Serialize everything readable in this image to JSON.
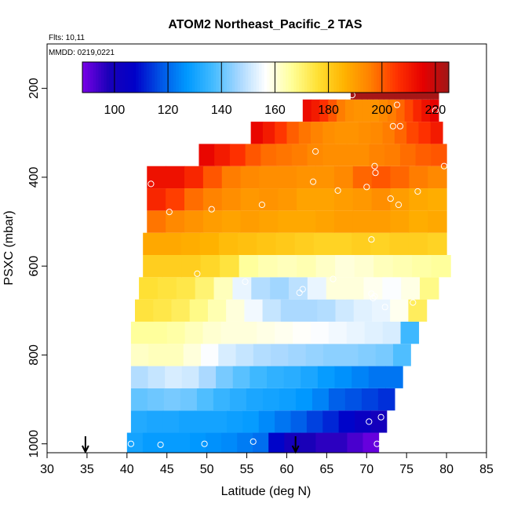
{
  "chart_data": {
    "type": "heatmap",
    "title": "ATOM2 Northeast_Pacific_2 TAS",
    "subtitle_flights": "Flts: 10,11",
    "subtitle_dates": "MMDD: 0219,0221",
    "xlabel": "Latitude (deg N)",
    "ylabel": "PSXC (mbar)",
    "xlim": [
      30,
      85
    ],
    "ylim": [
      1020,
      100
    ],
    "x_ticks": [
      30,
      35,
      40,
      45,
      50,
      55,
      60,
      65,
      70,
      75,
      80,
      85
    ],
    "y_ticks": [
      200,
      400,
      600,
      800,
      1000
    ],
    "colorbar": {
      "min": 88,
      "max": 225,
      "ticks": [
        100,
        120,
        140,
        160,
        180,
        200,
        220
      ],
      "colors": [
        "#7a00e6",
        "#1a00b8",
        "#0000c8",
        "#0055e6",
        "#0099ff",
        "#44bbff",
        "#a8d8ff",
        "#ffffff",
        "#ffff99",
        "#ffe033",
        "#ffb300",
        "#ff8000",
        "#ff3300",
        "#e60000",
        "#a01818"
      ]
    },
    "bands": [
      {
        "p": 1000,
        "lat": [
          40.0,
          71.5
        ],
        "v": [
          130,
          128,
          128,
          128,
          127,
          126,
          125,
          123,
          121,
          108,
          100,
          98,
          96,
          96,
          93,
          90
        ]
      },
      {
        "p": 950,
        "lat": [
          40.5,
          72.5
        ],
        "v": [
          132,
          131,
          131,
          130,
          130,
          130,
          129,
          128,
          125,
          122,
          119,
          115,
          112,
          108,
          104,
          100
        ]
      },
      {
        "p": 900,
        "lat": [
          40.5,
          73.5
        ],
        "v": [
          140,
          141,
          142,
          141,
          138,
          135,
          133,
          131,
          130,
          129,
          127,
          124,
          119,
          117,
          115,
          113
        ]
      },
      {
        "p": 850,
        "lat": [
          40.5,
          74.5
        ],
        "v": [
          148,
          150,
          152,
          151,
          147,
          142,
          139,
          136,
          134,
          133,
          131,
          128,
          126,
          124,
          122,
          122
        ]
      },
      {
        "p": 800,
        "lat": [
          40.5,
          75.5
        ],
        "v": [
          162,
          163,
          163,
          160,
          156,
          152,
          150,
          148,
          147,
          146,
          145,
          144,
          144,
          143,
          142,
          138
        ]
      },
      {
        "p": 750,
        "lat": [
          40.5,
          76.5
        ],
        "v": [
          166,
          166,
          165,
          163,
          161,
          160,
          160,
          159,
          158,
          157,
          156,
          155,
          154,
          153,
          152,
          136
        ]
      },
      {
        "p": 700,
        "lat": [
          41.0,
          77.5
        ],
        "v": [
          175,
          174,
          172,
          168,
          164,
          160,
          155,
          150,
          147,
          147,
          148,
          151,
          153,
          154,
          158,
          172
        ]
      },
      {
        "p": 650,
        "lat": [
          41.5,
          79.0
        ],
        "v": [
          176,
          175,
          174,
          170,
          163,
          154,
          148,
          146,
          149,
          154,
          160,
          160,
          158,
          156,
          159,
          168
        ]
      },
      {
        "p": 600,
        "lat": [
          42.0,
          80.5
        ],
        "v": [
          180,
          180,
          180,
          178,
          175,
          166,
          164,
          163,
          164,
          162,
          160,
          161,
          163,
          164,
          165,
          166
        ]
      },
      {
        "p": 550,
        "lat": [
          42.0,
          80.0
        ],
        "v": [
          188,
          188,
          187,
          186,
          184,
          183,
          182,
          181,
          180,
          179,
          179,
          180,
          179,
          180,
          180,
          179
        ]
      },
      {
        "p": 500,
        "lat": [
          42.5,
          80.0
        ],
        "v": [
          197,
          194,
          192,
          190,
          189,
          190,
          189,
          188,
          188,
          189,
          190,
          190,
          190,
          189,
          187,
          188
        ]
      },
      {
        "p": 450,
        "lat": [
          42.5,
          80.0
        ],
        "v": [
          208,
          204,
          198,
          195,
          193,
          191,
          192,
          191,
          189,
          189,
          190,
          191,
          193,
          190,
          188,
          187
        ]
      },
      {
        "p": 400,
        "lat": [
          42.5,
          80.0
        ],
        "v": [
          212,
          212,
          208,
          201,
          196,
          194,
          193,
          193,
          192,
          192,
          194,
          199,
          201,
          199,
          196,
          194
        ]
      },
      {
        "p": 350,
        "lat": [
          49.0,
          80.0
        ],
        "v": [
          214,
          210,
          206,
          201,
          198,
          197,
          196,
          194,
          193,
          193,
          193,
          195,
          196,
          198,
          200,
          201
        ]
      },
      {
        "p": 300,
        "lat": [
          55.5,
          79.5
        ],
        "v": [
          214,
          210,
          205,
          200,
          197,
          195,
          193,
          192,
          192,
          193,
          194,
          196,
          199,
          203,
          206,
          210
        ]
      },
      {
        "p": 250,
        "lat": [
          62.0,
          79.0
        ],
        "v": [
          213,
          210,
          206,
          201,
          196,
          193,
          192,
          192,
          192,
          194,
          196,
          199,
          203,
          208,
          212,
          215
        ]
      },
      {
        "p": 200,
        "lat": [
          68.0,
          79.0
        ],
        "v": [
          224,
          224,
          224,
          224,
          224,
          224,
          224,
          224,
          224,
          224,
          224,
          224,
          224,
          224,
          224,
          224
        ]
      }
    ],
    "points": [
      {
        "lat": 40.5,
        "p": 1000
      },
      {
        "lat": 44.2,
        "p": 1002
      },
      {
        "lat": 49.7,
        "p": 1000
      },
      {
        "lat": 55.8,
        "p": 995
      },
      {
        "lat": 71.3,
        "p": 1000
      },
      {
        "lat": 70.3,
        "p": 950
      },
      {
        "lat": 71.8,
        "p": 940
      },
      {
        "lat": 48.8,
        "p": 617
      },
      {
        "lat": 54.8,
        "p": 635
      },
      {
        "lat": 62.0,
        "p": 652
      },
      {
        "lat": 61.6,
        "p": 660
      },
      {
        "lat": 65.8,
        "p": 629
      },
      {
        "lat": 70.6,
        "p": 662
      },
      {
        "lat": 70.8,
        "p": 672
      },
      {
        "lat": 71.0,
        "p": 668
      },
      {
        "lat": 72.3,
        "p": 692
      },
      {
        "lat": 75.8,
        "p": 682
      },
      {
        "lat": 70.6,
        "p": 540
      },
      {
        "lat": 45.3,
        "p": 478
      },
      {
        "lat": 50.6,
        "p": 472
      },
      {
        "lat": 56.9,
        "p": 462
      },
      {
        "lat": 43.0,
        "p": 415
      },
      {
        "lat": 63.3,
        "p": 410
      },
      {
        "lat": 66.4,
        "p": 430
      },
      {
        "lat": 70.0,
        "p": 422
      },
      {
        "lat": 73.0,
        "p": 448
      },
      {
        "lat": 74.0,
        "p": 462
      },
      {
        "lat": 76.4,
        "p": 432
      },
      {
        "lat": 71.0,
        "p": 375
      },
      {
        "lat": 71.1,
        "p": 390
      },
      {
        "lat": 79.7,
        "p": 375
      },
      {
        "lat": 63.6,
        "p": 342
      },
      {
        "lat": 73.3,
        "p": 285
      },
      {
        "lat": 74.2,
        "p": 285
      },
      {
        "lat": 73.8,
        "p": 237
      },
      {
        "lat": 78.6,
        "p": 250
      },
      {
        "lat": 68.2,
        "p": 215
      }
    ],
    "arrows": [
      {
        "lat": 34.8
      },
      {
        "lat": 61.1
      }
    ]
  }
}
